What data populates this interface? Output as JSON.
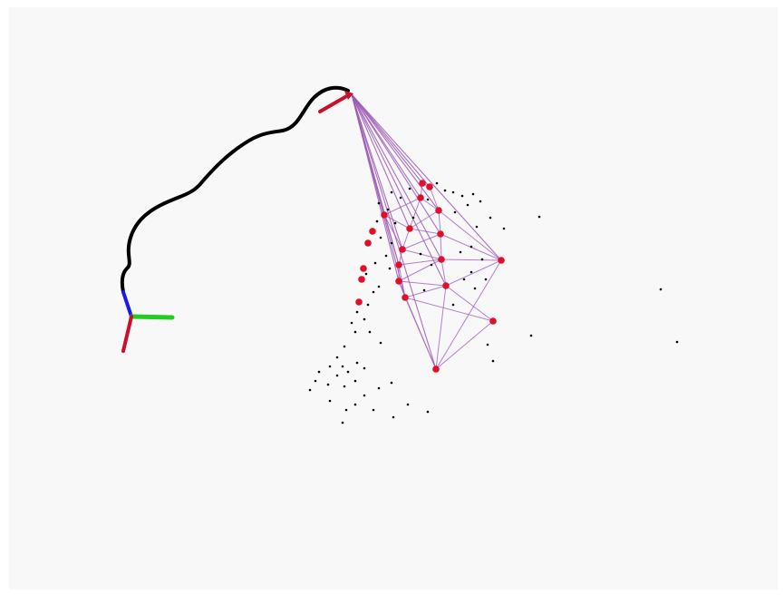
{
  "scene": {
    "colors": {
      "trajectory": "#000000",
      "axis_x": "#c8102e",
      "axis_y": "#22cc22",
      "axis_z": "#1a1aee",
      "camera_arrow": "#c8102e",
      "frustum_lines": "#9b59b6",
      "mesh_edges": "#a261c7",
      "landmarks": "#e0102a",
      "map_points": "#000000",
      "background": "#f8f8f8"
    },
    "icons": {
      "origin_frame": "coordinate-axes-icon",
      "current_pose": "camera-arrow-icon"
    }
  }
}
